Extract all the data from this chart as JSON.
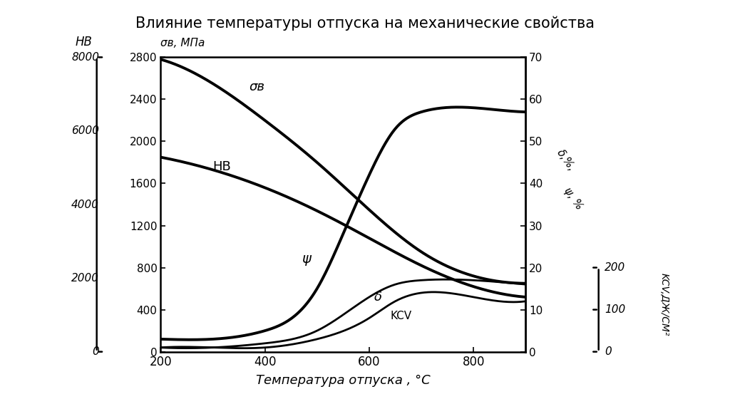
{
  "title": "Влияние температуры отпуска на механические свойства",
  "xlabel": "Температура отпуска , °С",
  "x_range": [
    200,
    900
  ],
  "x_ticks": [
    200,
    400,
    600,
    800
  ],
  "background_color": "#ffffff",
  "HB_left_ticks": [
    0,
    2000,
    4000,
    6000,
    8000
  ],
  "sigma_ticks": [
    0,
    400,
    800,
    1200,
    1600,
    2000,
    2400,
    2800
  ],
  "delta_psi_ticks": [
    0,
    10,
    20,
    30,
    40,
    50,
    60,
    70
  ],
  "kcv_display_ticks": [
    0,
    100,
    200
  ],
  "curve_sigma_x": [
    200,
    300,
    400,
    500,
    600,
    700,
    800,
    900
  ],
  "curve_sigma_y": [
    2780,
    2550,
    2200,
    1800,
    1350,
    950,
    720,
    650
  ],
  "curve_HB_x": [
    200,
    300,
    400,
    500,
    600,
    700,
    800,
    900
  ],
  "curve_HB_y": [
    1850,
    1730,
    1560,
    1340,
    1080,
    820,
    620,
    520
  ],
  "curve_psi_x": [
    200,
    300,
    400,
    500,
    550,
    600,
    650,
    700,
    800,
    900
  ],
  "curve_psi_y": [
    3,
    3,
    5,
    15,
    28,
    42,
    53,
    57,
    58,
    57
  ],
  "curve_delta_x": [
    200,
    300,
    400,
    500,
    600,
    650,
    700,
    800,
    900
  ],
  "curve_delta_y": [
    1,
    1,
    2,
    5,
    13,
    16,
    17,
    17,
    16
  ],
  "curve_kcv_x": [
    200,
    300,
    400,
    500,
    600,
    650,
    700,
    750,
    800,
    900
  ],
  "curve_kcv_y": [
    1,
    1,
    1,
    3,
    8,
    12,
    14,
    14,
    13,
    12
  ]
}
